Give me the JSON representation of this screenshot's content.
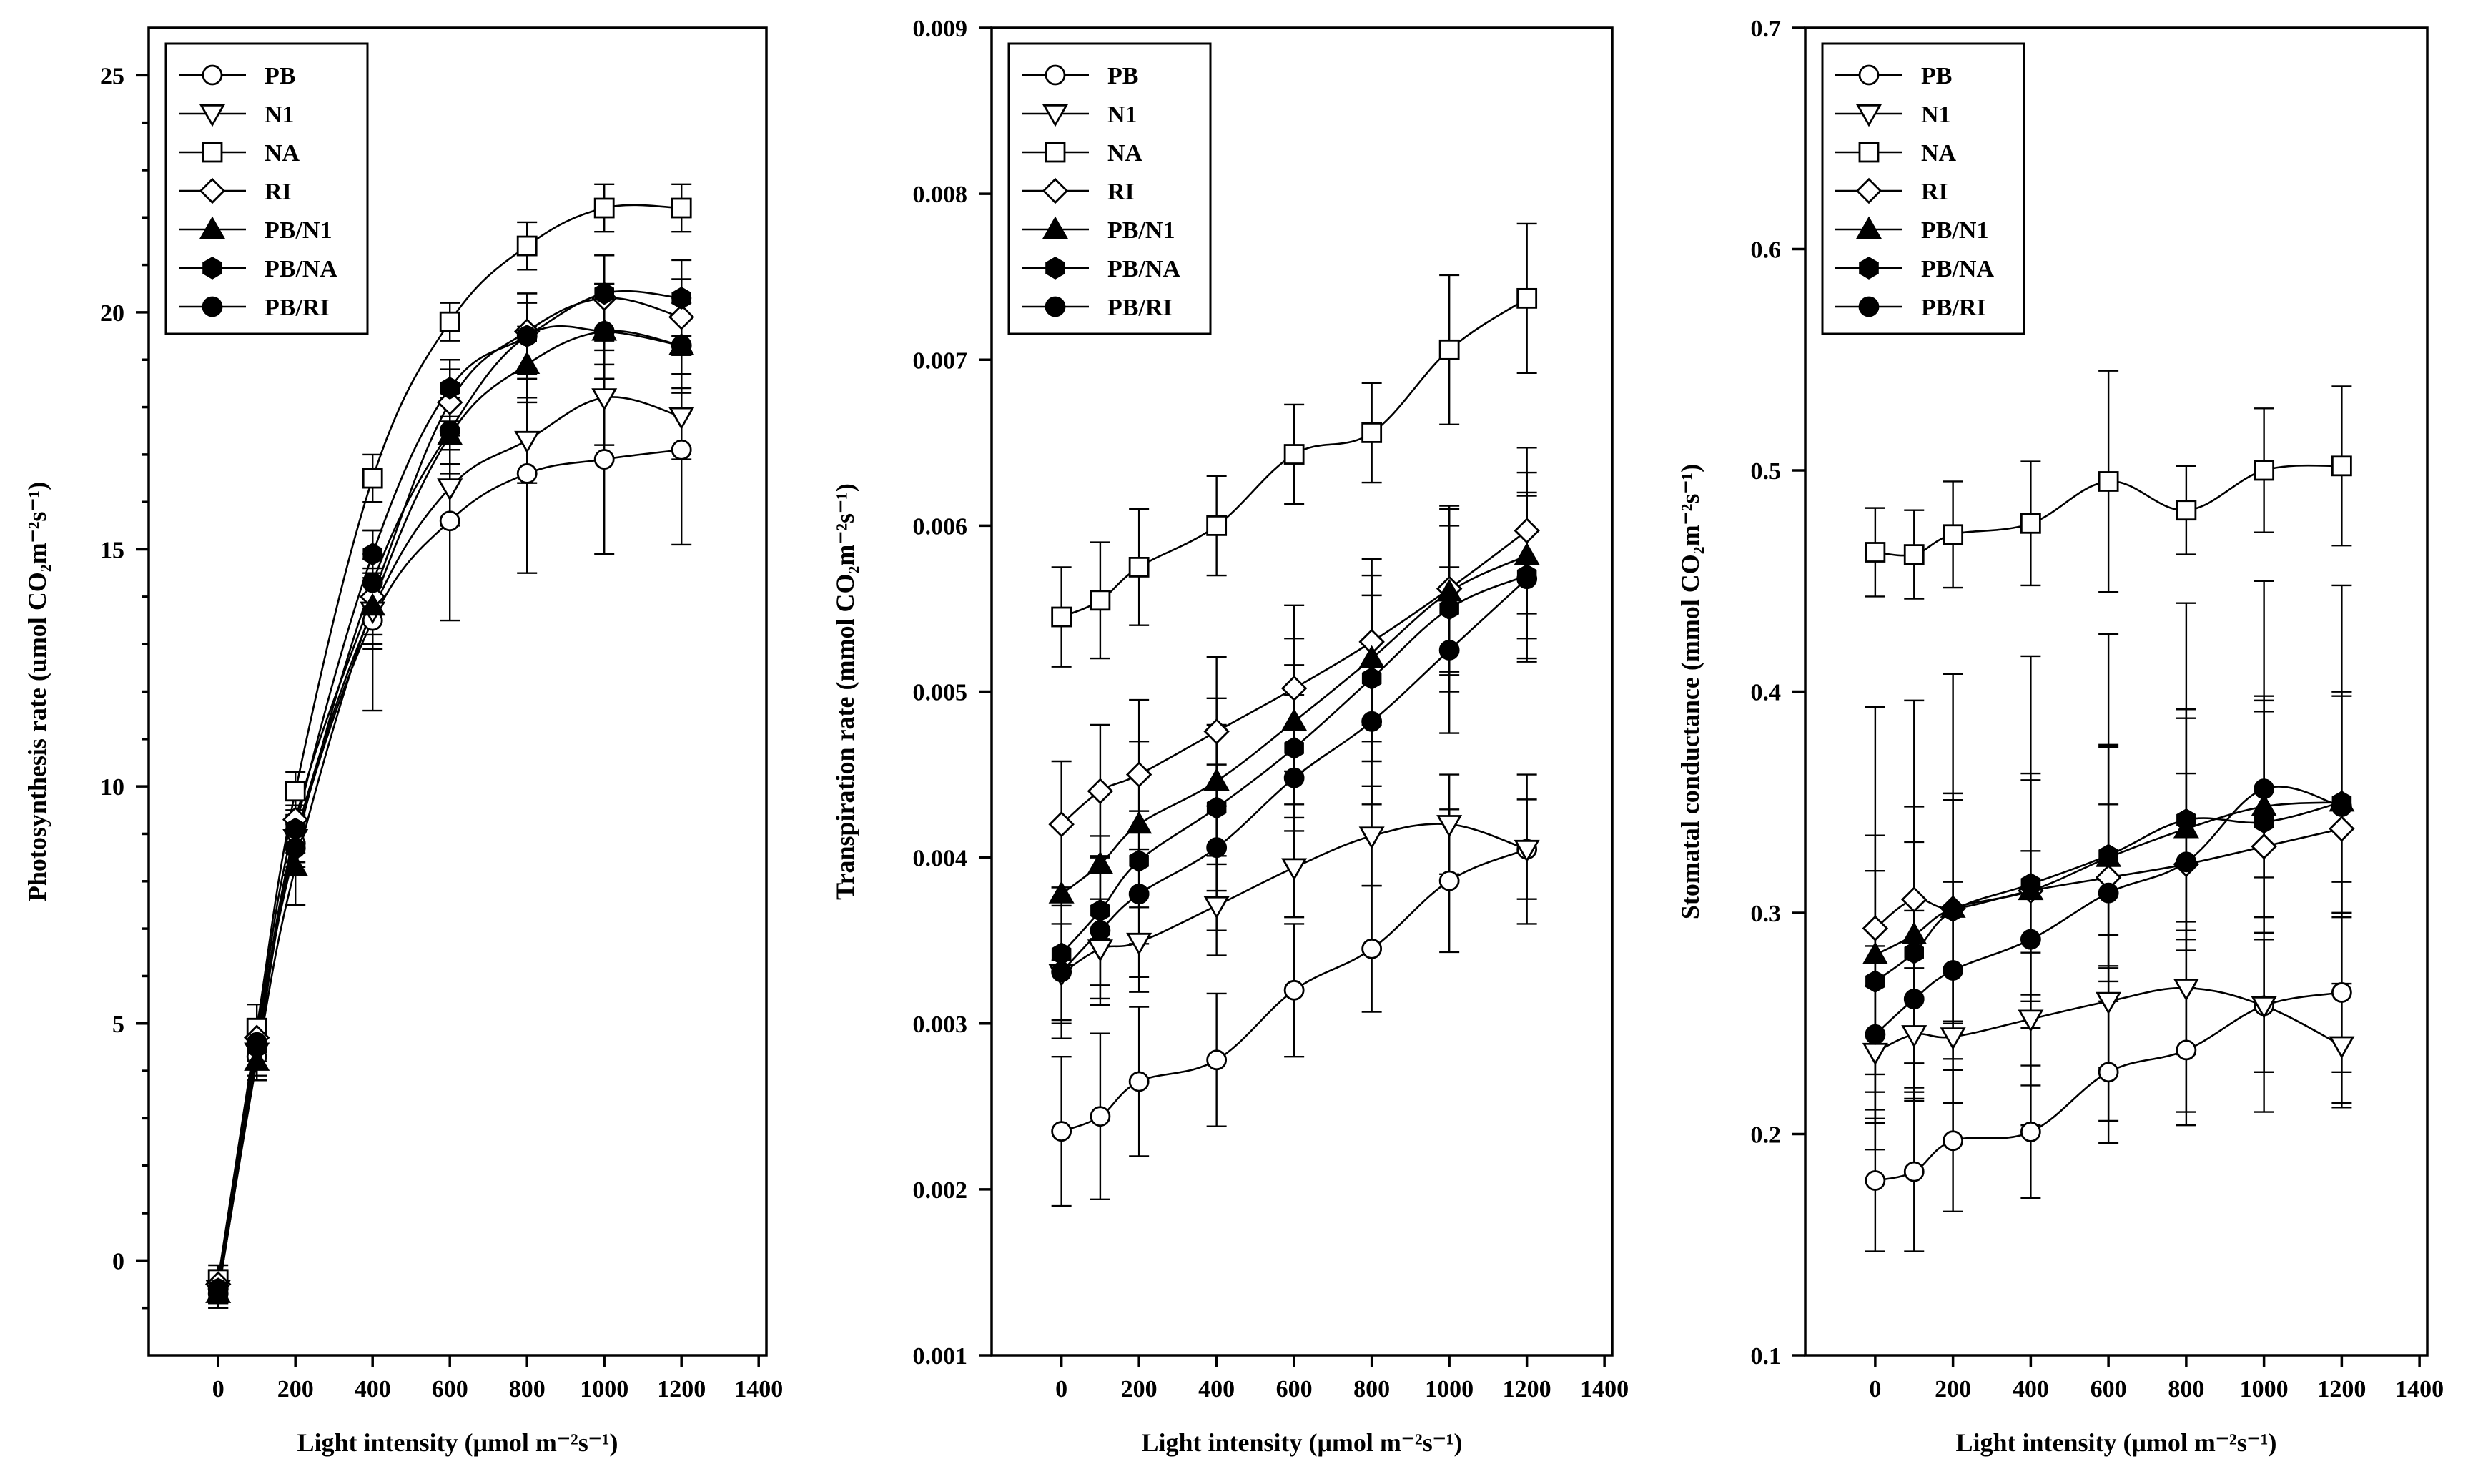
{
  "chart_data": [
    {
      "type": "line",
      "panel": "photosynthesis",
      "title": "",
      "xlabel": "Light intensity (μmol m⁻²s⁻¹)",
      "ylabel": "Photosynthesis rate (umol CO₂m⁻²s⁻¹)",
      "xlim": [
        -180,
        1420
      ],
      "ylim": [
        -2,
        26
      ],
      "xticks": [
        0,
        200,
        400,
        600,
        800,
        1000,
        1200,
        1400
      ],
      "xtick_labels": [
        "0",
        "200",
        "400",
        "600",
        "800",
        "1000",
        "1200",
        "1400"
      ],
      "yticks": [
        0,
        5,
        10,
        15,
        20,
        25
      ],
      "ytick_labels": [
        "0",
        "5",
        "10",
        "15",
        "20",
        "25"
      ],
      "minor_yticks": [
        -1,
        1,
        2,
        3,
        4,
        6,
        7,
        8,
        9,
        11,
        12,
        13,
        14,
        16,
        17,
        18,
        19,
        21,
        22,
        23,
        24
      ],
      "legend_position": "top-left",
      "grid": false,
      "x": [
        0,
        100,
        200,
        400,
        600,
        800,
        1000,
        1200
      ],
      "series": [
        {
          "name": "PB",
          "marker": "circle-open",
          "values": [
            -0.7,
            4.3,
            8.8,
            13.5,
            15.6,
            16.6,
            16.9,
            17.1
          ],
          "errors": [
            0.3,
            0.5,
            0.5,
            1.9,
            2.1,
            2.1,
            2.0,
            2.0
          ]
        },
        {
          "name": "N1",
          "marker": "triangle-down-open",
          "values": [
            -0.6,
            4.4,
            8.9,
            13.7,
            16.3,
            17.3,
            18.2,
            17.8
          ],
          "errors": [
            0.3,
            0.5,
            0.5,
            0.8,
            0.8,
            0.9,
            1.0,
            0.9
          ]
        },
        {
          "name": "NA",
          "marker": "square-open",
          "values": [
            -0.4,
            4.9,
            9.9,
            16.5,
            19.8,
            21.4,
            22.2,
            22.2
          ],
          "errors": [
            0.3,
            0.5,
            0.4,
            0.5,
            0.4,
            0.5,
            0.5,
            0.5
          ]
        },
        {
          "name": "RI",
          "marker": "diamond-open",
          "values": [
            -0.5,
            4.7,
            9.3,
            14.0,
            18.1,
            19.6,
            20.3,
            19.9
          ],
          "errors": [
            0.3,
            0.4,
            0.5,
            0.8,
            0.7,
            0.8,
            0.9,
            0.8
          ]
        },
        {
          "name": "PB/N1",
          "marker": "triangle-up-filled",
          "values": [
            -0.7,
            4.2,
            8.3,
            13.8,
            17.4,
            18.9,
            19.6,
            19.3
          ],
          "errors": [
            0.3,
            0.4,
            0.8,
            0.8,
            0.8,
            0.8,
            1.0,
            0.9
          ]
        },
        {
          "name": "PB/NA",
          "marker": "hexagon-filled",
          "values": [
            -0.6,
            4.5,
            9.1,
            14.9,
            18.4,
            19.5,
            20.4,
            20.3
          ],
          "errors": [
            0.3,
            0.4,
            0.5,
            0.5,
            0.6,
            0.7,
            0.8,
            0.8
          ]
        },
        {
          "name": "PB/RI",
          "marker": "circle-filled",
          "values": [
            -0.6,
            4.6,
            8.7,
            14.3,
            17.5,
            19.5,
            19.6,
            19.3
          ],
          "errors": [
            0.3,
            0.4,
            0.5,
            0.6,
            0.7,
            0.9,
            1.0,
            1.0
          ]
        }
      ]
    },
    {
      "type": "line",
      "panel": "transpiration",
      "title": "",
      "xlabel": "Light intensity (μmol m⁻²s⁻¹)",
      "ylabel": "Transpiration rate (mmol CO₂m⁻²s⁻¹)",
      "xlim": [
        -180,
        1420
      ],
      "ylim": [
        0.001,
        0.009
      ],
      "xticks": [
        0,
        200,
        400,
        600,
        800,
        1000,
        1200,
        1400
      ],
      "xtick_labels": [
        "0",
        "200",
        "400",
        "600",
        "800",
        "1000",
        "1200",
        "1400"
      ],
      "yticks": [
        0.001,
        0.002,
        0.003,
        0.004,
        0.005,
        0.006,
        0.007,
        0.008,
        0.009
      ],
      "ytick_labels": [
        "0.001",
        "0.002",
        "0.003",
        "0.004",
        "0.005",
        "0.006",
        "0.007",
        "0.008",
        "0.009"
      ],
      "minor_yticks": [],
      "legend_position": "top-left",
      "grid": false,
      "x": [
        0,
        100,
        200,
        400,
        600,
        800,
        1000,
        1200
      ],
      "series": [
        {
          "name": "PB",
          "marker": "circle-open",
          "values": [
            0.00235,
            0.00244,
            0.00265,
            0.00278,
            0.0032,
            0.00345,
            0.00386,
            0.00405
          ],
          "errors": [
            0.00045,
            0.0005,
            0.00045,
            0.0004,
            0.0004,
            0.00038,
            0.00043,
            0.00045
          ]
        },
        {
          "name": "N1",
          "marker": "triangle-down-open",
          "values": [
            0.0033,
            0.00345,
            0.00349,
            0.00371,
            0.00394,
            0.00413,
            0.0042,
            0.00405
          ],
          "errors": [
            0.0003,
            0.0003,
            0.0003,
            0.0003,
            0.0003,
            0.0003,
            0.0003,
            0.0003
          ]
        },
        {
          "name": "NA",
          "marker": "square-open",
          "values": [
            0.00545,
            0.00555,
            0.00575,
            0.006,
            0.00643,
            0.00656,
            0.00706,
            0.00737
          ],
          "errors": [
            0.0003,
            0.00035,
            0.00035,
            0.0003,
            0.0003,
            0.0003,
            0.00045,
            0.00045
          ]
        },
        {
          "name": "RI",
          "marker": "diamond-open",
          "values": [
            0.0042,
            0.0044,
            0.0045,
            0.00476,
            0.00502,
            0.0053,
            0.00562,
            0.00597
          ],
          "errors": [
            0.00038,
            0.0004,
            0.00045,
            0.00045,
            0.0005,
            0.0005,
            0.0005,
            0.0005
          ]
        },
        {
          "name": "PB/N1",
          "marker": "triangle-up-filled",
          "values": [
            0.00378,
            0.00396,
            0.0042,
            0.00446,
            0.00482,
            0.0052,
            0.0056,
            0.00582
          ],
          "errors": [
            0.0004,
            0.00045,
            0.0005,
            0.0005,
            0.0005,
            0.0005,
            0.0005,
            0.0005
          ]
        },
        {
          "name": "PB/NA",
          "marker": "hexagon-filled",
          "values": [
            0.00342,
            0.00368,
            0.00398,
            0.0043,
            0.00466,
            0.00508,
            0.0055,
            0.0057
          ],
          "errors": [
            0.0004,
            0.00045,
            0.0005,
            0.0005,
            0.0005,
            0.0005,
            0.0005,
            0.0005
          ]
        },
        {
          "name": "PB/RI",
          "marker": "circle-filled",
          "values": [
            0.00331,
            0.00356,
            0.00378,
            0.00406,
            0.00448,
            0.00482,
            0.00525,
            0.00568
          ],
          "errors": [
            0.0004,
            0.00045,
            0.0005,
            0.0005,
            0.0005,
            0.0005,
            0.0005,
            0.0005
          ]
        }
      ]
    },
    {
      "type": "line",
      "panel": "stomatal",
      "title": "",
      "xlabel": "Light intensity (μmol m⁻²s⁻¹)",
      "ylabel": "Stomatal conductance (mmol CO₂m⁻²s⁻¹)",
      "xlim": [
        -180,
        1420
      ],
      "ylim": [
        0.1,
        0.7
      ],
      "xticks": [
        0,
        200,
        400,
        600,
        800,
        1000,
        1200,
        1400
      ],
      "xtick_labels": [
        "0",
        "200",
        "400",
        "600",
        "800",
        "1000",
        "1200",
        "1400"
      ],
      "yticks": [
        0.1,
        0.2,
        0.3,
        0.4,
        0.5,
        0.6,
        0.7
      ],
      "ytick_labels": [
        "0.1",
        "0.2",
        "0.3",
        "0.4",
        "0.5",
        "0.6",
        "0.7"
      ],
      "minor_yticks": [],
      "legend_position": "top-left",
      "grid": false,
      "x": [
        0,
        100,
        200,
        400,
        600,
        800,
        1000,
        1200
      ],
      "series": [
        {
          "name": "PB",
          "marker": "circle-open",
          "values": [
            0.179,
            0.183,
            0.197,
            0.201,
            0.228,
            0.238,
            0.258,
            0.264
          ],
          "errors": [
            0.032,
            0.036,
            0.032,
            0.03,
            0.032,
            0.028,
            0.03,
            0.05
          ]
        },
        {
          "name": "N1",
          "marker": "triangle-down-open",
          "values": [
            0.237,
            0.245,
            0.244,
            0.252,
            0.26,
            0.266,
            0.258,
            0.24
          ],
          "errors": [
            0.03,
            0.03,
            0.03,
            0.03,
            0.03,
            0.03,
            0.03,
            0.028
          ]
        },
        {
          "name": "NA",
          "marker": "square-open",
          "values": [
            0.463,
            0.462,
            0.471,
            0.476,
            0.495,
            0.482,
            0.5,
            0.502
          ],
          "errors": [
            0.02,
            0.02,
            0.024,
            0.028,
            0.05,
            0.02,
            0.028,
            0.036
          ]
        },
        {
          "name": "RI",
          "marker": "diamond-open",
          "values": [
            0.293,
            0.306,
            0.302,
            0.31,
            0.316,
            0.322,
            0.33,
            0.338
          ],
          "errors": [
            0.1,
            0.09,
            0.106,
            0.106,
            0.11,
            0.118,
            0.12,
            0.11
          ]
        },
        {
          "name": "PB/N1",
          "marker": "triangle-up-filled",
          "values": [
            0.281,
            0.29,
            0.302,
            0.31,
            0.325,
            0.338,
            0.348,
            0.35
          ],
          "errors": [
            0.054,
            0.058,
            0.052,
            0.05,
            0.05,
            0.05,
            0.05,
            0.05
          ]
        },
        {
          "name": "PB/NA",
          "marker": "hexagon-filled",
          "values": [
            0.269,
            0.282,
            0.301,
            0.313,
            0.326,
            0.342,
            0.341,
            0.35
          ],
          "errors": [
            0.05,
            0.05,
            0.05,
            0.05,
            0.05,
            0.05,
            0.05,
            0.05
          ]
        },
        {
          "name": "PB/RI",
          "marker": "circle-filled",
          "values": [
            0.245,
            0.261,
            0.274,
            0.288,
            0.309,
            0.323,
            0.356,
            0.348
          ],
          "errors": [
            0.04,
            0.04,
            0.04,
            0.04,
            0.04,
            0.04,
            0.04,
            0.05
          ]
        }
      ]
    }
  ],
  "legend_labels": [
    "PB",
    "N1",
    "NA",
    "RI",
    "PB/N1",
    "PB/NA",
    "PB/RI"
  ],
  "panel_titles": {
    "photosynthesis_ylabel": "Photosynthesis rate (umol CO₂m⁻²s⁻¹)",
    "transpiration_ylabel": "Transpiration rate (mmol CO₂m⁻²s⁻¹)",
    "stomatal_ylabel": "Stomatal conductance (mmol CO₂m⁻²s⁻¹)",
    "xlabel": "Light intensity (μmol m⁻²s⁻¹)"
  }
}
